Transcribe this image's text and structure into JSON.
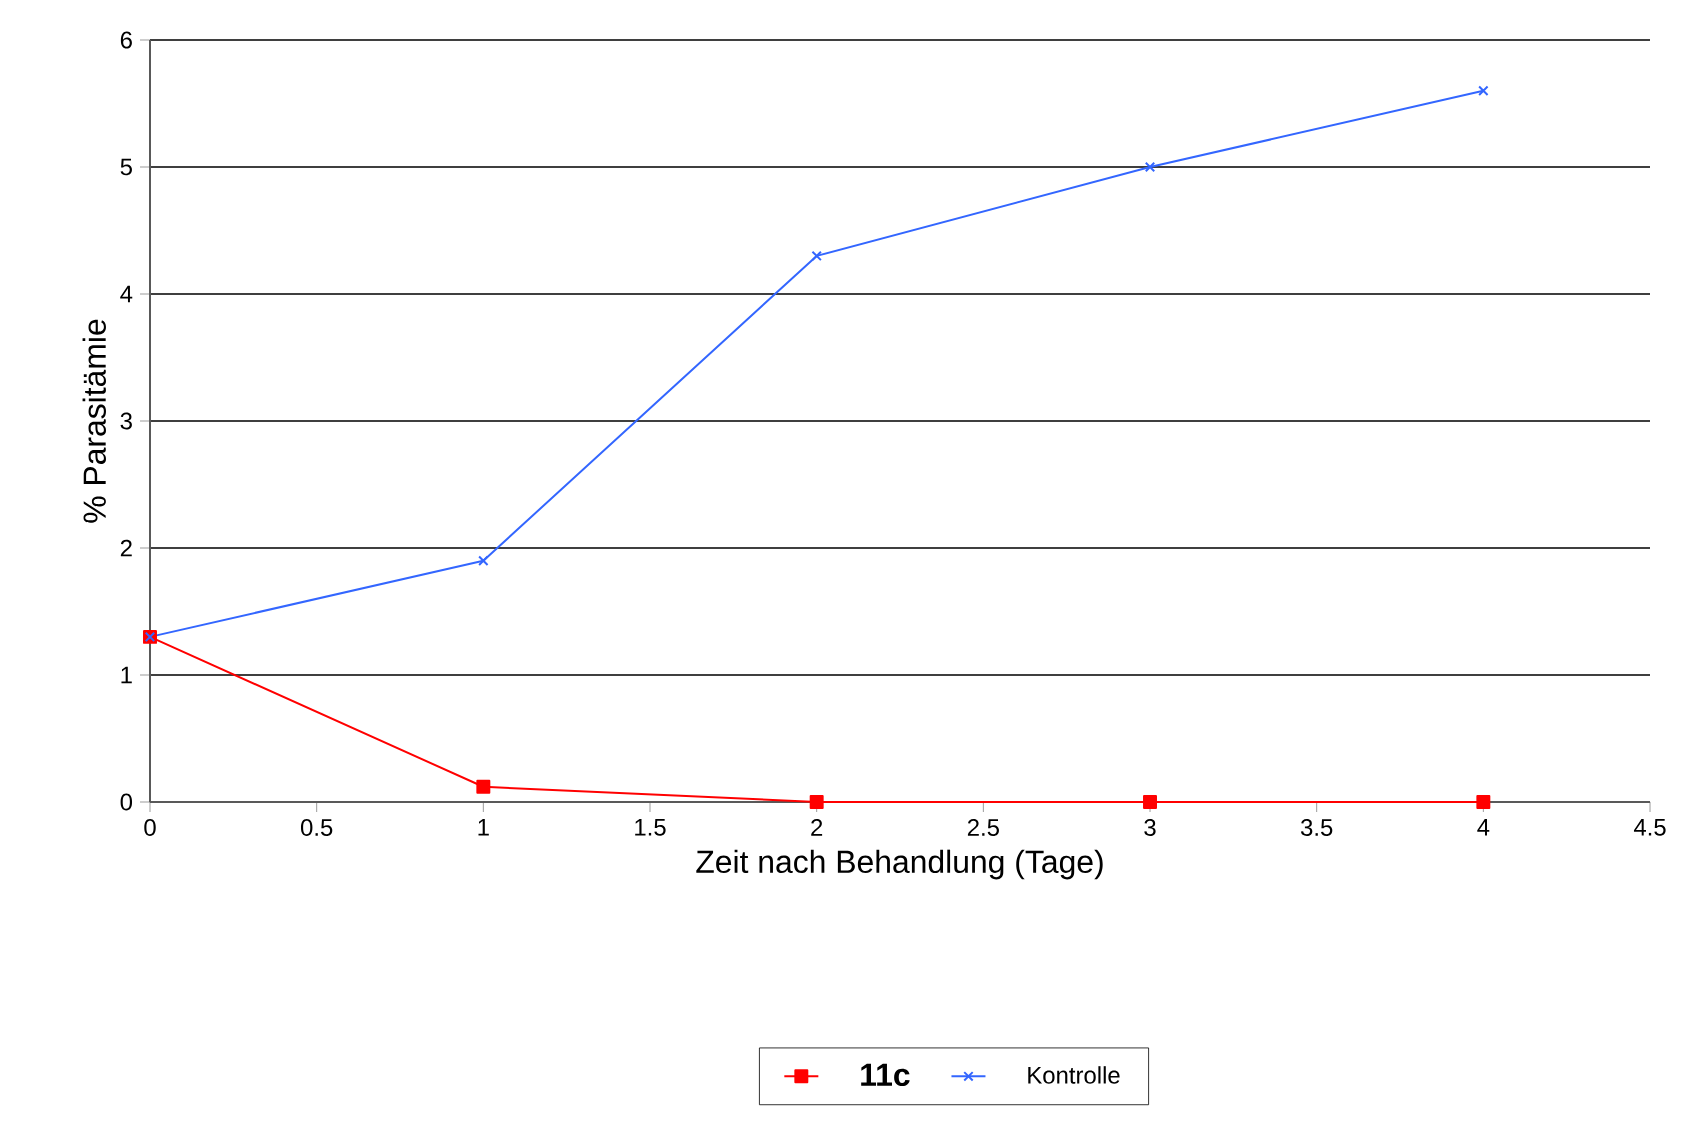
{
  "chart_data": {
    "type": "line",
    "xlabel": "Zeit nach Behandlung (Tage)",
    "ylabel": "% Parasitämie",
    "x": [
      0,
      1,
      2,
      3,
      4
    ],
    "series": [
      {
        "name": "11c",
        "color": "#ff0000",
        "marker": "square",
        "values": [
          1.3,
          0.12,
          0,
          0,
          0
        ]
      },
      {
        "name": "Kontrolle",
        "color": "#3366ff",
        "marker": "cross",
        "values": [
          1.3,
          1.9,
          4.3,
          5.0,
          5.6
        ]
      }
    ],
    "xlim": [
      0,
      4.5
    ],
    "xticks": [
      0,
      0.5,
      1,
      1.5,
      2,
      2.5,
      3,
      3.5,
      4,
      4.5
    ],
    "ylim": [
      0,
      6
    ],
    "yticks": [
      0,
      1,
      2,
      3,
      4,
      5,
      6
    ],
    "grid": "y",
    "legend": "bottom",
    "line_style": "solid"
  }
}
